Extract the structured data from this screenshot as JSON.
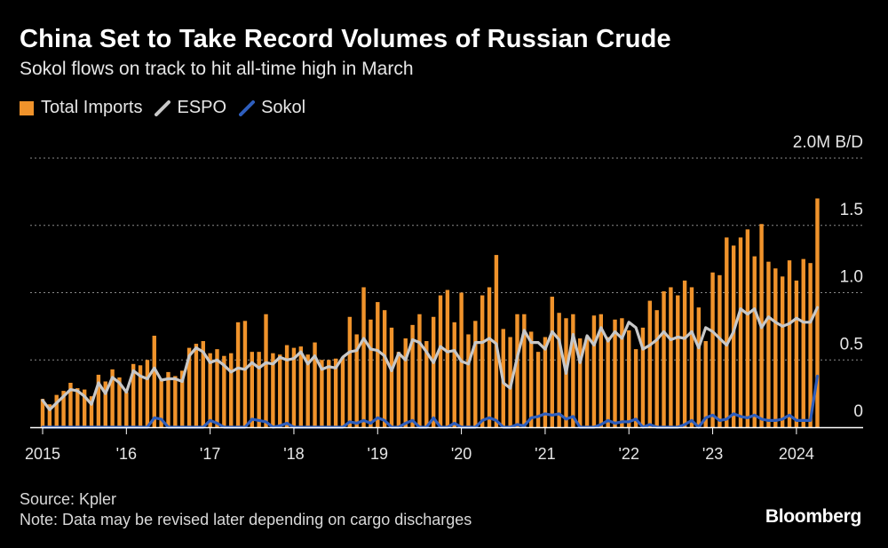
{
  "header": {
    "title": "China Set to Take Record Volumes of Russian Crude",
    "subtitle": "Sokol flows on track to hit all-time high in March"
  },
  "legend": {
    "items": [
      {
        "label": "Total Imports",
        "color": "#f0932b",
        "icon": "bar-swatch-icon"
      },
      {
        "label": "ESPO",
        "color": "#c8c8c8",
        "icon": "line-swatch-icon"
      },
      {
        "label": "Sokol",
        "color": "#2e5ebd",
        "icon": "line-swatch-icon"
      }
    ]
  },
  "footer": {
    "source": "Source: Kpler",
    "note": "Note: Data may be revised later depending on cargo discharges",
    "brand": "Bloomberg"
  },
  "chart_data": {
    "type": "bar+line",
    "title": "China Set to Take Record Volumes of Russian Crude",
    "subtitle": "Sokol flows on track to hit all-time high in March",
    "unit_label": "2.0M B/D",
    "ylim": [
      0,
      2.0
    ],
    "y_ticks": [
      {
        "value": 0,
        "label": "0"
      },
      {
        "value": 0.5,
        "label": "0.5"
      },
      {
        "value": 1.0,
        "label": "1.0"
      },
      {
        "value": 1.5,
        "label": "1.5"
      },
      {
        "value": 2.0,
        "label": "2.0M B/D"
      }
    ],
    "x_start": "2015-01",
    "x_ticks": [
      {
        "index": 0,
        "label": "2015"
      },
      {
        "index": 12,
        "label": "'16"
      },
      {
        "index": 24,
        "label": "'17"
      },
      {
        "index": 36,
        "label": "'18"
      },
      {
        "index": 48,
        "label": "'19"
      },
      {
        "index": 60,
        "label": "'20"
      },
      {
        "index": 72,
        "label": "'21"
      },
      {
        "index": 84,
        "label": "'22"
      },
      {
        "index": 96,
        "label": "'23"
      },
      {
        "index": 108,
        "label": "2024"
      }
    ],
    "series": [
      {
        "name": "Total Imports",
        "kind": "bar",
        "color": "#f0932b",
        "values": [
          0.21,
          0.17,
          0.24,
          0.27,
          0.33,
          0.29,
          0.28,
          0.23,
          0.39,
          0.34,
          0.43,
          0.37,
          0.26,
          0.47,
          0.46,
          0.5,
          0.68,
          0.36,
          0.41,
          0.38,
          0.42,
          0.59,
          0.62,
          0.64,
          0.55,
          0.58,
          0.53,
          0.55,
          0.78,
          0.79,
          0.56,
          0.56,
          0.84,
          0.55,
          0.54,
          0.61,
          0.59,
          0.6,
          0.54,
          0.63,
          0.5,
          0.5,
          0.51,
          0.52,
          0.82,
          0.69,
          1.04,
          0.8,
          0.93,
          0.87,
          0.74,
          0.56,
          0.66,
          0.76,
          0.84,
          0.64,
          0.82,
          0.98,
          1.02,
          0.78,
          1.0,
          0.69,
          0.79,
          0.98,
          1.04,
          1.28,
          0.73,
          0.67,
          0.84,
          0.84,
          0.71,
          0.56,
          0.67,
          0.97,
          0.85,
          0.81,
          0.84,
          0.66,
          0.67,
          0.83,
          0.84,
          0.67,
          0.8,
          0.81,
          0.72,
          0.58,
          0.74,
          0.94,
          0.87,
          1.01,
          1.04,
          0.98,
          1.09,
          1.04,
          0.89,
          0.64,
          1.15,
          1.13,
          1.41,
          1.35,
          1.41,
          1.47,
          1.27,
          1.51,
          1.23,
          1.18,
          1.12,
          1.24,
          1.09,
          1.25,
          1.22,
          1.7
        ]
      },
      {
        "name": "ESPO",
        "kind": "line",
        "color": "#c8c8c8",
        "values": [
          0.2,
          0.13,
          0.18,
          0.23,
          0.28,
          0.27,
          0.23,
          0.17,
          0.33,
          0.25,
          0.37,
          0.33,
          0.26,
          0.42,
          0.38,
          0.36,
          0.44,
          0.35,
          0.36,
          0.36,
          0.34,
          0.53,
          0.59,
          0.56,
          0.48,
          0.5,
          0.46,
          0.41,
          0.44,
          0.43,
          0.48,
          0.44,
          0.48,
          0.47,
          0.52,
          0.5,
          0.51,
          0.56,
          0.47,
          0.53,
          0.43,
          0.45,
          0.44,
          0.52,
          0.56,
          0.57,
          0.66,
          0.58,
          0.57,
          0.53,
          0.42,
          0.55,
          0.5,
          0.65,
          0.63,
          0.56,
          0.48,
          0.6,
          0.56,
          0.57,
          0.49,
          0.47,
          0.63,
          0.63,
          0.66,
          0.62,
          0.33,
          0.29,
          0.52,
          0.72,
          0.63,
          0.63,
          0.58,
          0.71,
          0.65,
          0.4,
          0.69,
          0.48,
          0.68,
          0.61,
          0.74,
          0.64,
          0.71,
          0.66,
          0.78,
          0.74,
          0.58,
          0.61,
          0.65,
          0.71,
          0.65,
          0.67,
          0.66,
          0.71,
          0.59,
          0.74,
          0.71,
          0.66,
          0.61,
          0.71,
          0.88,
          0.84,
          0.88,
          0.74,
          0.82,
          0.78,
          0.75,
          0.77,
          0.81,
          0.78,
          0.78,
          0.89
        ]
      },
      {
        "name": "Sokol",
        "kind": "line",
        "color": "#2e5ebd",
        "values": [
          0,
          0,
          0,
          0,
          0,
          0,
          0,
          0,
          0,
          0,
          0,
          0,
          0,
          0,
          0,
          0,
          0.07,
          0.06,
          0,
          0,
          0,
          0,
          0,
          0,
          0.05,
          0.03,
          0,
          0,
          0,
          0,
          0.06,
          0.05,
          0.04,
          0,
          0.01,
          0.03,
          0,
          0,
          0,
          0,
          0,
          0,
          0,
          0,
          0.04,
          0.03,
          0.05,
          0.03,
          0.07,
          0.05,
          0,
          0,
          0.03,
          0.05,
          0,
          0,
          0.07,
          0,
          0,
          0.03,
          0,
          0,
          0,
          0.05,
          0.07,
          0.05,
          0,
          0,
          0.02,
          0.01,
          0.07,
          0.08,
          0.1,
          0.09,
          0.1,
          0.06,
          0.08,
          0,
          0,
          0,
          0.02,
          0.05,
          0.03,
          0.04,
          0.04,
          0.06,
          0,
          0.02,
          0,
          0,
          0,
          0,
          0.02,
          0.05,
          0,
          0.07,
          0.09,
          0.05,
          0.06,
          0.1,
          0.08,
          0.07,
          0.09,
          0.06,
          0.05,
          0.05,
          0.06,
          0.09,
          0.05,
          0.05,
          0.05,
          0.38
        ]
      }
    ]
  }
}
